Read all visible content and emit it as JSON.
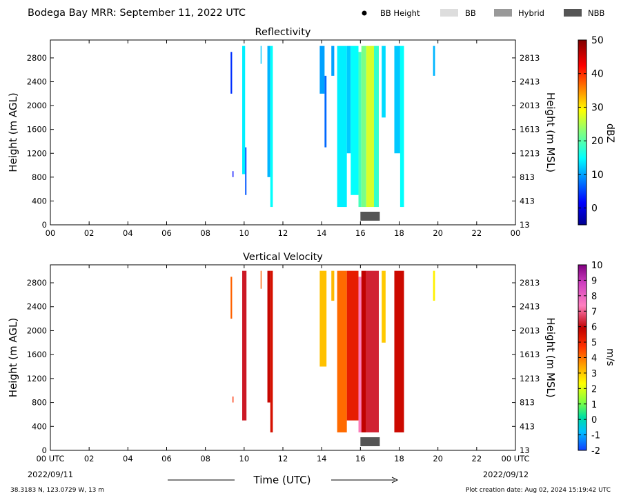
{
  "header": {
    "title": "Bodega Bay MRR:  September 11, 2022 UTC"
  },
  "legend": {
    "items": [
      {
        "label": "BB Height",
        "kind": "dot",
        "color": "#000000"
      },
      {
        "label": "BB",
        "kind": "box",
        "color": "#dddddd"
      },
      {
        "label": "Hybrid",
        "kind": "box",
        "color": "#999999"
      },
      {
        "label": "NBB",
        "kind": "box",
        "color": "#555555"
      }
    ]
  },
  "panels": [
    {
      "key": "reflectivity",
      "title": "Reflectivity"
    },
    {
      "key": "velocity",
      "title": "Vertical Velocity"
    }
  ],
  "axes": {
    "left_label": "Height (m AGL)",
    "right_label": "Height (m MSL)",
    "x_ticks_top": [
      "00",
      "02",
      "04",
      "06",
      "08",
      "10",
      "12",
      "14",
      "16",
      "18",
      "20",
      "22",
      "00"
    ],
    "x_ticks_bottom": [
      "00 UTC",
      "02",
      "04",
      "06",
      "08",
      "10",
      "12",
      "14",
      "16",
      "18",
      "20",
      "22",
      "00 UTC"
    ],
    "left_ticks": [
      "0",
      "400",
      "800",
      "1200",
      "1600",
      "2000",
      "2400",
      "2800"
    ],
    "right_ticks": [
      "13",
      "413",
      "813",
      "1213",
      "1613",
      "2013",
      "2413",
      "2813"
    ],
    "start_date": "2022/09/11",
    "end_date": "2022/09/12",
    "x_title": "Time (UTC)"
  },
  "colorbars": {
    "reflectivity": {
      "unit": "dBZ",
      "ticks": [
        "0",
        "10",
        "20",
        "30",
        "40",
        "50"
      ]
    },
    "velocity": {
      "unit": "m/s",
      "ticks": [
        "-2",
        "-1",
        "0",
        "1",
        "2",
        "3",
        "4",
        "5",
        "6",
        "7",
        "8",
        "9",
        "10"
      ]
    }
  },
  "footer": {
    "location": "38.3183 N, 123.0729 W, 13 m",
    "creation": "Plot creation date: Aug 02, 2024 15:19:42 UTC"
  },
  "chart_data": [
    {
      "type": "heatmap",
      "title": "Reflectivity",
      "xlabel": "Time (UTC)",
      "ylabel": "Height (m AGL)",
      "y2label": "Height (m MSL)",
      "xlim": [
        0,
        24
      ],
      "ylim": [
        0,
        3100
      ],
      "colorbar": {
        "label": "dBZ",
        "range": [
          -5,
          50
        ]
      },
      "echoes": [
        {
          "t0": 9.3,
          "t1": 9.38,
          "h0": 2200,
          "h1": 2900,
          "value": 4
        },
        {
          "t0": 9.4,
          "t1": 9.45,
          "h0": 800,
          "h1": 900,
          "value": 2
        },
        {
          "t0": 9.9,
          "t1": 10.05,
          "h0": 850,
          "h1": 3000,
          "value": 14
        },
        {
          "t0": 10.05,
          "t1": 10.12,
          "h0": 500,
          "h1": 1300,
          "value": 6
        },
        {
          "t0": 10.85,
          "t1": 10.9,
          "h0": 2700,
          "h1": 3000,
          "value": 12
        },
        {
          "t0": 11.2,
          "t1": 11.35,
          "h0": 800,
          "h1": 3000,
          "value": 11
        },
        {
          "t0": 11.35,
          "t1": 11.48,
          "h0": 300,
          "h1": 3000,
          "value": 15
        },
        {
          "t0": 13.9,
          "t1": 14.15,
          "h0": 2200,
          "h1": 3000,
          "value": 10
        },
        {
          "t0": 14.15,
          "t1": 14.25,
          "h0": 1300,
          "h1": 2500,
          "value": 7
        },
        {
          "t0": 14.5,
          "t1": 14.65,
          "h0": 2500,
          "h1": 3000,
          "value": 10
        },
        {
          "t0": 14.8,
          "t1": 15.3,
          "h0": 300,
          "h1": 3000,
          "value": 14
        },
        {
          "t0": 15.3,
          "t1": 15.5,
          "h0": 1200,
          "h1": 3000,
          "value": 12
        },
        {
          "t0": 15.5,
          "t1": 15.9,
          "h0": 500,
          "h1": 3000,
          "value": 15
        },
        {
          "t0": 15.9,
          "t1": 16.05,
          "h0": 300,
          "h1": 2900,
          "value": 19
        },
        {
          "t0": 16.05,
          "t1": 16.3,
          "h0": 300,
          "h1": 3000,
          "value": 22
        },
        {
          "t0": 16.3,
          "t1": 16.7,
          "h0": 300,
          "h1": 3000,
          "value": 27
        },
        {
          "t0": 16.7,
          "t1": 16.95,
          "h0": 300,
          "h1": 3000,
          "value": 18
        },
        {
          "t0": 17.1,
          "t1": 17.3,
          "h0": 1800,
          "h1": 3000,
          "value": 13
        },
        {
          "t0": 17.75,
          "t1": 18.05,
          "h0": 1200,
          "h1": 3000,
          "value": 12
        },
        {
          "t0": 18.05,
          "t1": 18.25,
          "h0": 300,
          "h1": 3000,
          "value": 15
        },
        {
          "t0": 19.75,
          "t1": 19.85,
          "h0": 2500,
          "h1": 3000,
          "value": 11
        }
      ],
      "bright_band": [
        {
          "t0": 16.0,
          "t1": 17.0,
          "type": "NBB"
        }
      ]
    },
    {
      "type": "heatmap",
      "title": "Vertical Velocity",
      "xlabel": "Time (UTC)",
      "ylabel": "Height (m AGL)",
      "y2label": "Height (m MSL)",
      "xlim": [
        0,
        24
      ],
      "ylim": [
        0,
        3100
      ],
      "colorbar": {
        "label": "m/s",
        "range": [
          -2,
          10
        ]
      },
      "echoes": [
        {
          "t0": 9.3,
          "t1": 9.38,
          "h0": 2200,
          "h1": 2900,
          "value": 4.2
        },
        {
          "t0": 9.4,
          "t1": 9.45,
          "h0": 800,
          "h1": 900,
          "value": 4.8
        },
        {
          "t0": 9.9,
          "t1": 10.12,
          "h0": 500,
          "h1": 3000,
          "value": 6.2
        },
        {
          "t0": 10.85,
          "t1": 10.9,
          "h0": 2700,
          "h1": 3000,
          "value": 4.2
        },
        {
          "t0": 11.2,
          "t1": 11.35,
          "h0": 800,
          "h1": 3000,
          "value": 5.8
        },
        {
          "t0": 11.35,
          "t1": 11.48,
          "h0": 300,
          "h1": 3000,
          "value": 5.5
        },
        {
          "t0": 13.9,
          "t1": 14.25,
          "h0": 1400,
          "h1": 3000,
          "value": 3.1
        },
        {
          "t0": 14.5,
          "t1": 14.65,
          "h0": 2500,
          "h1": 3000,
          "value": 3.2
        },
        {
          "t0": 14.8,
          "t1": 15.3,
          "h0": 300,
          "h1": 3000,
          "value": 4.1
        },
        {
          "t0": 15.3,
          "t1": 15.9,
          "h0": 500,
          "h1": 3000,
          "value": 5.2
        },
        {
          "t0": 15.9,
          "t1": 16.05,
          "h0": 300,
          "h1": 2900,
          "value": 7.3
        },
        {
          "t0": 16.05,
          "t1": 16.3,
          "h0": 300,
          "h1": 3000,
          "value": 5.9
        },
        {
          "t0": 16.3,
          "t1": 16.95,
          "h0": 300,
          "h1": 3000,
          "value": 6.3
        },
        {
          "t0": 17.1,
          "t1": 17.3,
          "h0": 1800,
          "h1": 3000,
          "value": 3.0
        },
        {
          "t0": 17.75,
          "t1": 18.25,
          "h0": 300,
          "h1": 3000,
          "value": 5.7
        },
        {
          "t0": 19.75,
          "t1": 19.85,
          "h0": 2500,
          "h1": 3000,
          "value": 2.5
        }
      ],
      "bright_band": [
        {
          "t0": 16.0,
          "t1": 17.0,
          "type": "NBB"
        }
      ]
    }
  ]
}
